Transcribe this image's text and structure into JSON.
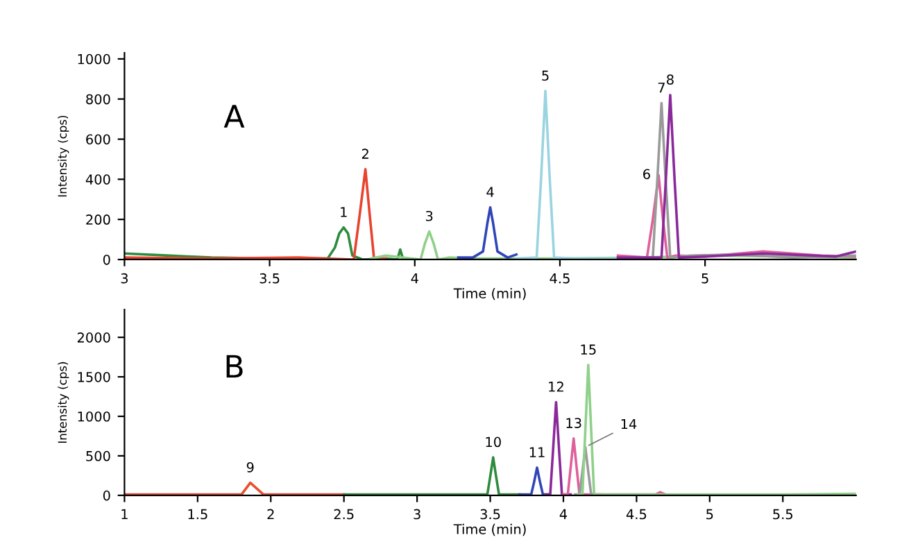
{
  "chart_data": [
    {
      "type": "line",
      "xlabel": "Time (min)",
      "ylabel": "Intensity (cps)",
      "xlim": [
        3,
        5.52
      ],
      "ylim": [
        0,
        1030
      ],
      "xticks": [
        3,
        3.5,
        4,
        4.5,
        5
      ],
      "yticks": [
        0,
        200,
        400,
        600,
        800,
        1000
      ],
      "grid": false,
      "legend": false,
      "series": [
        {
          "color": "#2e8b3e",
          "x": [
            3.0,
            3.3,
            3.5,
            3.7,
            3.725,
            3.74,
            3.755,
            3.77,
            3.785,
            3.82,
            3.9,
            3.94,
            3.95,
            3.96,
            4.0
          ],
          "values": [
            30,
            10,
            5,
            5,
            60,
            130,
            160,
            130,
            20,
            0,
            5,
            0,
            50,
            0,
            0
          ]
        },
        {
          "color": "#e8432e",
          "x": [
            3.0,
            3.3,
            3.6,
            3.79,
            3.81,
            3.83,
            3.845,
            3.86,
            3.9
          ],
          "values": [
            10,
            5,
            10,
            0,
            220,
            450,
            220,
            0,
            5
          ]
        },
        {
          "color": "#8fd08a",
          "x": [
            3.85,
            3.9,
            4.02,
            4.035,
            4.05,
            4.065,
            4.08,
            4.12,
            4.2,
            4.5,
            4.8,
            5.0,
            5.3,
            5.52
          ],
          "values": [
            5,
            20,
            0,
            80,
            140,
            80,
            0,
            10,
            5,
            5,
            10,
            20,
            15,
            10
          ]
        },
        {
          "color": "#3046b8",
          "x": [
            4.15,
            4.2,
            4.235,
            4.25,
            4.26,
            4.27,
            4.285,
            4.32,
            4.35
          ],
          "values": [
            10,
            10,
            40,
            180,
            260,
            180,
            40,
            10,
            25
          ]
        },
        {
          "color": "#9ad4e0",
          "x": [
            4.35,
            4.42,
            4.435,
            4.45,
            4.465,
            4.48,
            4.55,
            4.7
          ],
          "values": [
            5,
            10,
            400,
            840,
            400,
            10,
            5,
            5
          ]
        },
        {
          "color": "#e0609a",
          "x": [
            4.7,
            4.8,
            4.82,
            4.84,
            4.855,
            4.87,
            4.9,
            5.0,
            5.2,
            5.4,
            5.52
          ],
          "values": [
            20,
            10,
            200,
            420,
            200,
            10,
            20,
            15,
            40,
            20,
            15
          ]
        },
        {
          "color": "#9a9a9a",
          "x": [
            4.7,
            4.82,
            4.835,
            4.85,
            4.865,
            4.88,
            4.95,
            5.1,
            5.3,
            5.52
          ],
          "values": [
            10,
            10,
            380,
            780,
            380,
            10,
            20,
            25,
            10,
            20
          ]
        },
        {
          "color": "#8a2a9a",
          "x": [
            4.7,
            4.85,
            4.865,
            4.88,
            4.895,
            4.91,
            5.0,
            5.2,
            5.45,
            5.52
          ],
          "values": [
            10,
            10,
            400,
            820,
            400,
            10,
            15,
            30,
            15,
            40
          ]
        }
      ],
      "annotations": [
        "A",
        {
          "text": "1",
          "x": 3.755,
          "y": 160
        },
        {
          "text": "2",
          "x": 3.83,
          "y": 450
        },
        {
          "text": "3",
          "x": 4.05,
          "y": 140
        },
        {
          "text": "4",
          "x": 4.26,
          "y": 260
        },
        {
          "text": "5",
          "x": 4.45,
          "y": 840
        },
        {
          "text": "6",
          "x": 4.84,
          "y": 420
        },
        {
          "text": "7",
          "x": 4.85,
          "y": 780
        },
        {
          "text": "8",
          "x": 4.88,
          "y": 820
        }
      ]
    },
    {
      "type": "line",
      "xlabel": "Time (min)",
      "ylabel": "Intensity (cps)",
      "xlim": [
        1,
        6
      ],
      "ylim": [
        0,
        2350
      ],
      "xticks": [
        1,
        1.5,
        2,
        2.5,
        3,
        3.5,
        4,
        4.5,
        5,
        5.5
      ],
      "yticks": [
        0,
        500,
        1000,
        1500,
        2000
      ],
      "grid": false,
      "legend": false,
      "series": [
        {
          "color": "#e8502e",
          "x": [
            1,
            1.5,
            1.8,
            1.86,
            1.95,
            2.5
          ],
          "values": [
            10,
            10,
            10,
            160,
            10,
            10
          ]
        },
        {
          "color": "#2e8b3e",
          "x": [
            2.5,
            3.0,
            3.48,
            3.5,
            3.52,
            3.54,
            3.56,
            3.7
          ],
          "values": [
            10,
            10,
            10,
            240,
            480,
            240,
            10,
            10
          ]
        },
        {
          "color": "#3046b8",
          "x": [
            3.7,
            3.78,
            3.8,
            3.82,
            3.84,
            3.86,
            3.9
          ],
          "values": [
            10,
            10,
            170,
            350,
            170,
            10,
            10
          ]
        },
        {
          "color": "#8a2a9a",
          "x": [
            3.88,
            3.91,
            3.93,
            3.95,
            3.97,
            3.99,
            4.05
          ],
          "values": [
            10,
            10,
            590,
            1180,
            590,
            10,
            10
          ]
        },
        {
          "color": "#e0609a",
          "x": [
            4.0,
            4.03,
            4.05,
            4.07,
            4.09,
            4.11,
            4.4,
            4.63,
            4.66,
            4.7
          ],
          "values": [
            10,
            10,
            360,
            720,
            360,
            10,
            10,
            10,
            40,
            10
          ]
        },
        {
          "color": "#9a9a9a",
          "x": [
            4.08,
            4.11,
            4.13,
            4.15,
            4.17,
            4.19,
            4.25
          ],
          "values": [
            10,
            10,
            300,
            610,
            300,
            10,
            10
          ]
        },
        {
          "color": "#8fd08a",
          "x": [
            4.1,
            4.13,
            4.15,
            4.17,
            4.19,
            4.21,
            4.5,
            5.0,
            5.5,
            6.0
          ],
          "values": [
            10,
            10,
            820,
            1650,
            820,
            10,
            10,
            10,
            10,
            20
          ]
        }
      ],
      "annotations": [
        "B",
        {
          "text": "9",
          "x": 1.86,
          "y": 160
        },
        {
          "text": "10",
          "x": 3.52,
          "y": 480
        },
        {
          "text": "11",
          "x": 3.82,
          "y": 350
        },
        {
          "text": "12",
          "x": 3.95,
          "y": 1180
        },
        {
          "text": "13",
          "x": 4.07,
          "y": 720
        },
        {
          "text": "14",
          "x": 4.15,
          "y": 610
        },
        {
          "text": "15",
          "x": 4.17,
          "y": 1650
        }
      ]
    }
  ]
}
